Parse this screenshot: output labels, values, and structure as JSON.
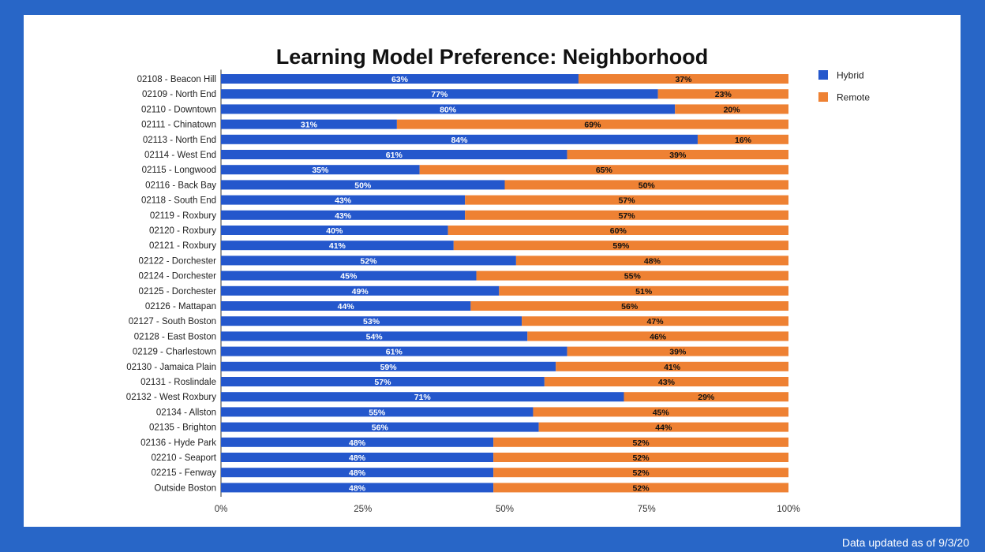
{
  "footer": {
    "note": "Data updated as of 9/3/20"
  },
  "colors": {
    "background": "#2866c7",
    "hybrid": "#2457cc",
    "remote": "#ee8133"
  },
  "chart_data": {
    "type": "bar",
    "orientation": "horizontal",
    "stacked": true,
    "title": "Learning Model Preference: Neighborhood",
    "xlabel": "",
    "ylabel": "",
    "xlim": [
      0,
      100
    ],
    "x_ticks": [
      "0%",
      "25%",
      "50%",
      "75%",
      "100%"
    ],
    "legend_position": "top-right",
    "grid": false,
    "categories": [
      "02108 - Beacon Hill",
      "02109 - North End",
      "02110 - Downtown",
      "02111 - Chinatown",
      "02113 - North End",
      "02114 - West End",
      "02115 - Longwood",
      "02116 - Back Bay",
      "02118 - South End",
      "02119 - Roxbury",
      "02120 - Roxbury",
      "02121 - Roxbury",
      "02122 - Dorchester",
      "02124 - Dorchester",
      "02125 - Dorchester",
      "02126 - Mattapan",
      "02127 - South Boston",
      "02128 - East Boston",
      "02129 - Charlestown",
      "02130 - Jamaica Plain",
      "02131 - Roslindale",
      "02132 - West Roxbury",
      "02134 - Allston",
      "02135 - Brighton",
      "02136 - Hyde Park",
      "02210 - Seaport",
      "02215 - Fenway",
      "Outside Boston"
    ],
    "series": [
      {
        "name": "Hybrid",
        "color": "#2457cc",
        "values": [
          63,
          77,
          80,
          31,
          84,
          61,
          35,
          50,
          43,
          43,
          40,
          41,
          52,
          45,
          49,
          44,
          53,
          54,
          61,
          59,
          57,
          71,
          55,
          56,
          48,
          48,
          48,
          48
        ],
        "labels": [
          "63%",
          "77%",
          "80%",
          "31%",
          "84%",
          "61%",
          "35%",
          "50%",
          "43%",
          "43%",
          "40%",
          "41%",
          "52%",
          "45%",
          "49%",
          "44%",
          "53%",
          "54%",
          "61%",
          "59%",
          "57%",
          "71%",
          "55%",
          "56%",
          "48%",
          "48%",
          "48%",
          "48%"
        ]
      },
      {
        "name": "Remote",
        "color": "#ee8133",
        "values": [
          37,
          23,
          20,
          69,
          16,
          39,
          65,
          50,
          57,
          57,
          60,
          59,
          48,
          55,
          51,
          56,
          47,
          46,
          39,
          41,
          43,
          29,
          45,
          44,
          52,
          52,
          52,
          52
        ],
        "labels": [
          "37%",
          "23%",
          "20%",
          "69%",
          "16%",
          "39%",
          "65%",
          "50%",
          "57%",
          "57%",
          "60%",
          "59%",
          "48%",
          "55%",
          "51%",
          "56%",
          "47%",
          "46%",
          "39%",
          "41%",
          "43%",
          "29%",
          "45%",
          "44%",
          "52%",
          "52%",
          "52%",
          "52%"
        ]
      }
    ]
  }
}
